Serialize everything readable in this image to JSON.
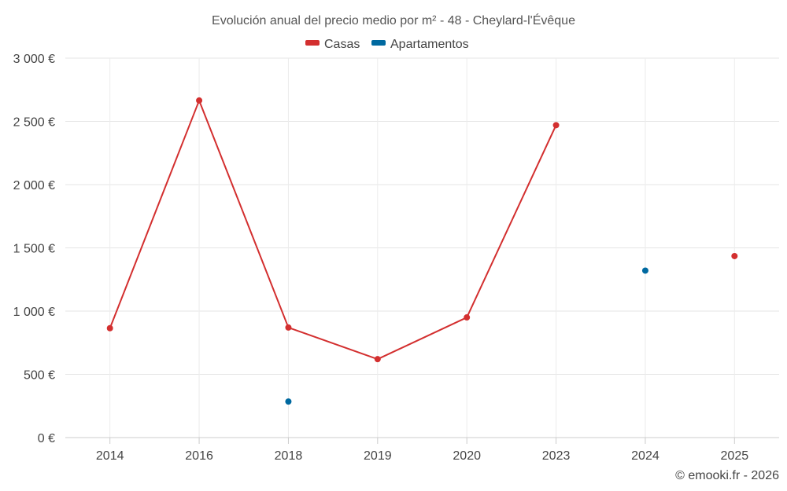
{
  "chart_data": {
    "type": "line",
    "title": "Evolución anual del precio medio por m² - 48 - Cheylard-l'Évêque",
    "categories": [
      "2014",
      "2016",
      "2018",
      "2019",
      "2020",
      "2023",
      "2024",
      "2025"
    ],
    "ylim": [
      0,
      3000
    ],
    "y_ticks": [
      0,
      500,
      1000,
      1500,
      2000,
      2500,
      3000
    ],
    "y_tick_labels": [
      "0 €",
      "500 €",
      "1 000 €",
      "1 500 €",
      "2 000 €",
      "2 500 €",
      "3 000 €"
    ],
    "xlabel": "",
    "ylabel": "",
    "grid": true,
    "legend_position": "top-center",
    "series": [
      {
        "name": "Casas",
        "color": "#d32f2f",
        "values": [
          865,
          2665,
          870,
          620,
          950,
          2470,
          null,
          1435
        ]
      },
      {
        "name": "Apartamentos",
        "color": "#0069a0",
        "values": [
          null,
          null,
          285,
          null,
          null,
          null,
          1320,
          null
        ]
      }
    ]
  },
  "footer": {
    "credit": "© emooki.fr - 2026"
  }
}
